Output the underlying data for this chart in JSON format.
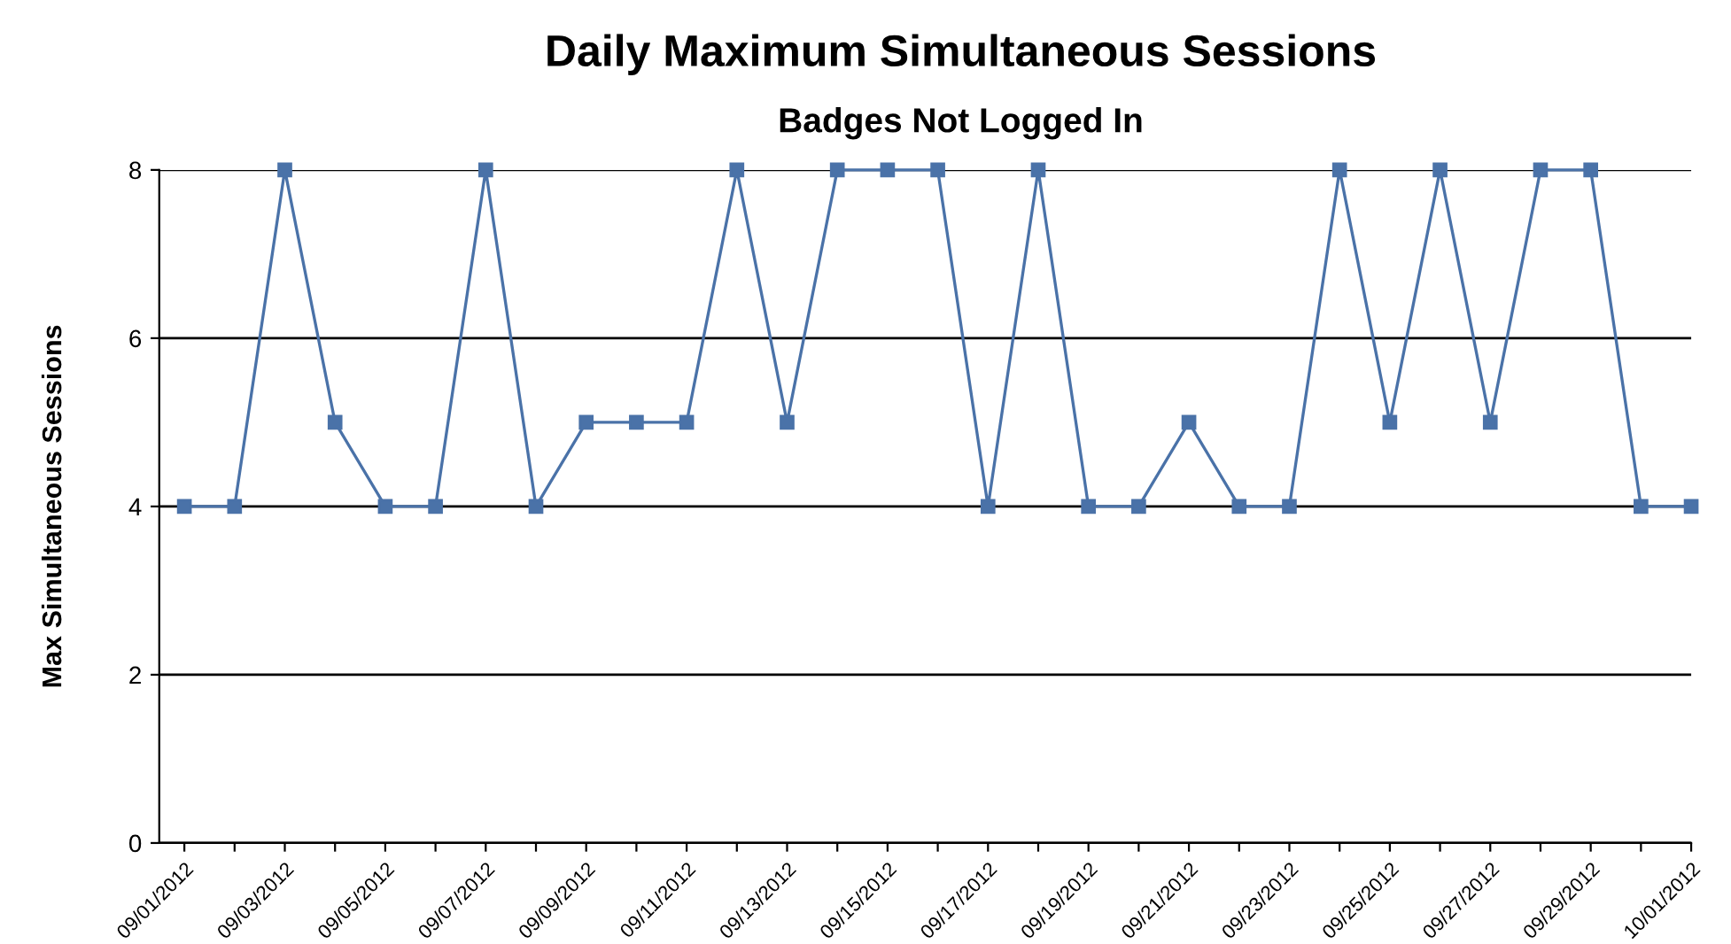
{
  "chart_data": {
    "type": "line",
    "title": "Daily Maximum Simultaneous Sessions",
    "subtitle": "Badges Not Logged In",
    "ylabel": "Max Simultaneous Sessions",
    "categories": [
      "09/01/2012",
      null,
      "09/03/2012",
      null,
      "09/05/2012",
      null,
      "09/07/2012",
      null,
      "09/09/2012",
      null,
      "09/11/2012",
      null,
      "09/13/2012",
      null,
      "09/15/2012",
      null,
      "09/17/2012",
      null,
      "09/19/2012",
      null,
      "09/21/2012",
      null,
      "09/23/2012",
      null,
      "09/25/2012",
      null,
      "09/27/2012",
      null,
      "09/29/2012",
      null,
      "10/01/2012"
    ],
    "series": [
      {
        "color": "#4a72a8",
        "values": [
          4,
          4,
          8,
          5,
          4,
          4,
          8,
          4,
          5,
          5,
          5,
          8,
          5,
          8,
          8,
          8,
          4,
          8,
          4,
          4,
          5,
          4,
          4,
          8,
          5,
          8,
          5,
          8,
          8,
          4,
          4
        ]
      }
    ],
    "ylim": [
      0,
      8
    ],
    "yticks": [
      0,
      2,
      4,
      6,
      8
    ],
    "grid": "y",
    "marker": "square",
    "line_style": "solid",
    "legend": false
  }
}
